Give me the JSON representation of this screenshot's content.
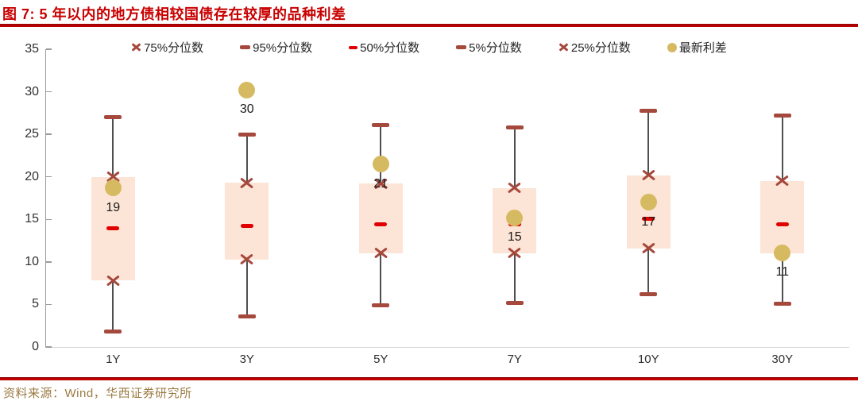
{
  "figure": {
    "title": "图 7:  5 年以内的地方债相较国债存在较厚的品种利差",
    "source": "资料来源：Wind，华西证券研究所"
  },
  "legend": {
    "items": [
      {
        "label": "75%分位数",
        "marker": "x"
      },
      {
        "label": "95%分位数",
        "marker": "dash-dark"
      },
      {
        "label": "50%分位数",
        "marker": "dash-bright"
      },
      {
        "label": "5%分位数",
        "marker": "dash-dark"
      },
      {
        "label": "25%分位数",
        "marker": "x"
      },
      {
        "label": "最新利差",
        "marker": "dot"
      }
    ]
  },
  "chart_data": {
    "type": "box",
    "title": "5 年以内的地方债相较国债存在较厚的品种利差",
    "categories": [
      "1Y",
      "3Y",
      "5Y",
      "7Y",
      "10Y",
      "30Y"
    ],
    "ylim": [
      0,
      35
    ],
    "yticks": [
      0,
      5,
      10,
      15,
      20,
      25,
      30,
      35
    ],
    "grid": false,
    "legend_position": "top",
    "series": [
      {
        "name": "95%分位数",
        "role": "p95",
        "values": [
          27.0,
          25.0,
          26.1,
          25.8,
          27.8,
          27.2
        ]
      },
      {
        "name": "75%分位数",
        "role": "p75",
        "values": [
          20.0,
          19.3,
          19.2,
          18.7,
          20.2,
          19.5
        ]
      },
      {
        "name": "50%分位数",
        "role": "p50",
        "values": [
          14.0,
          14.2,
          14.4,
          14.4,
          15.1,
          14.4
        ]
      },
      {
        "name": "25%分位数",
        "role": "p25",
        "values": [
          7.8,
          10.3,
          11.0,
          11.0,
          11.6,
          11.0
        ]
      },
      {
        "name": "5%分位数",
        "role": "p5",
        "values": [
          1.8,
          3.6,
          4.9,
          5.2,
          6.2,
          5.1
        ]
      },
      {
        "name": "最新利差",
        "role": "latest",
        "values": [
          18.7,
          30.2,
          21.5,
          15.2,
          17.0,
          11.1
        ],
        "labels": [
          "19",
          "30",
          "21",
          "15",
          "17",
          "11"
        ]
      }
    ]
  },
  "colors": {
    "title_red": "#c80000",
    "marker_brick": "#a5493d",
    "median_red": "#e00000",
    "dot_gold": "#d6ba62",
    "box_fill": "#fce5d6",
    "whisker_gray": "#4f4f4f",
    "axis_gray": "#9a9a9a",
    "baseline_gray": "#d6d6d6",
    "source_gold": "#9b7b42",
    "text_dark": "#262626"
  }
}
